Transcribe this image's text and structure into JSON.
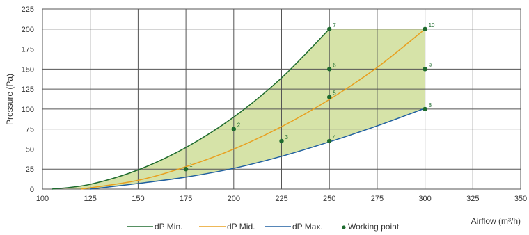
{
  "chart_data": {
    "type": "line",
    "xlabel": "Airflow (m³/h)",
    "ylabel": "Pressure (Pa)",
    "xlim": [
      100,
      350
    ],
    "ylim": [
      0,
      225
    ],
    "x_ticks": [
      100,
      125,
      150,
      175,
      200,
      225,
      250,
      275,
      300,
      325,
      350
    ],
    "y_ticks": [
      0,
      25,
      50,
      75,
      100,
      125,
      150,
      175,
      200,
      225
    ],
    "grid": true,
    "legend_position": "bottom",
    "series": [
      {
        "name": "dP Min.",
        "color": "#1e6b2e",
        "x": [
          105,
          125,
          150,
          175,
          200,
          225,
          250
        ],
        "y": [
          0,
          6,
          24,
          52,
          90,
          139,
          200
        ]
      },
      {
        "name": "dP Mid.",
        "color": "#e8a020",
        "x": [
          120,
          150,
          175,
          200,
          225,
          250,
          275,
          300
        ],
        "y": [
          0,
          11,
          28,
          50,
          78,
          112,
          152,
          200
        ]
      },
      {
        "name": "dP Max.",
        "color": "#1f5fa0",
        "x": [
          125,
          150,
          175,
          200,
          225,
          250,
          275,
          300
        ],
        "y": [
          0,
          7,
          15,
          26,
          41,
          59,
          79,
          101
        ]
      }
    ],
    "shaded_region": {
      "color": "#d6e3a8",
      "between": [
        "dP Min.",
        "dP Max."
      ],
      "right_bound_x": 300
    },
    "working_points": {
      "name": "Working point",
      "color": "#1e6b2e",
      "points": [
        {
          "label": "1",
          "x": 175,
          "y": 25
        },
        {
          "label": "2",
          "x": 200,
          "y": 75
        },
        {
          "label": "3",
          "x": 225,
          "y": 60
        },
        {
          "label": "4",
          "x": 250,
          "y": 60
        },
        {
          "label": "5",
          "x": 250,
          "y": 115
        },
        {
          "label": "6",
          "x": 250,
          "y": 150
        },
        {
          "label": "7",
          "x": 250,
          "y": 200
        },
        {
          "label": "8",
          "x": 300,
          "y": 100
        },
        {
          "label": "9",
          "x": 300,
          "y": 150
        },
        {
          "label": "10",
          "x": 300,
          "y": 200
        }
      ]
    }
  }
}
